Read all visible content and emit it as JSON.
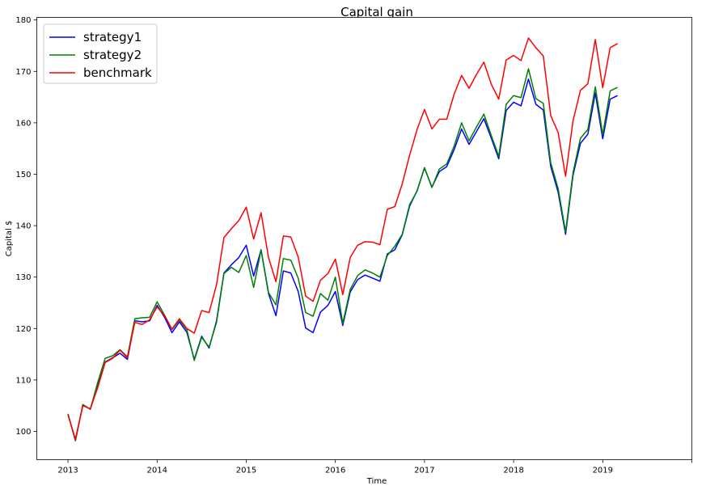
{
  "chart_data": {
    "type": "line",
    "title": "Capital gain",
    "xlabel": "Time",
    "ylabel": "Capital $",
    "xlim": [
      2012.65,
      2020.0
    ],
    "ylim": [
      94.5,
      180.5
    ],
    "xticks": [
      2013,
      2014,
      2015,
      2016,
      2017,
      2018,
      2019,
      2020
    ],
    "xtick_labels": [
      "2013",
      "2014",
      "2015",
      "2016",
      "2017",
      "2018",
      "2019",
      ""
    ],
    "yticks": [
      100,
      110,
      120,
      130,
      140,
      150,
      160,
      170,
      180
    ],
    "legend_position": "top-left",
    "grid": false,
    "x_start": 2013.0,
    "x_step": 0.08333,
    "series": [
      {
        "name": "strategy1",
        "color": "#0000ff",
        "values": [
          103.4,
          98.2,
          105.2,
          104.3,
          108.8,
          113.5,
          114.3,
          115.2,
          114.0,
          121.5,
          121.3,
          121.5,
          124.5,
          122.2,
          119.2,
          121.3,
          119.3,
          114.0,
          118.5,
          116.2,
          121.5,
          130.8,
          132.4,
          133.8,
          136.2,
          130.2,
          135.3,
          126.8,
          122.5,
          131.2,
          130.8,
          127.2,
          120.1,
          119.2,
          123.2,
          124.5,
          127.2,
          120.6,
          127.1,
          129.5,
          130.4,
          129.8,
          129.2,
          134.5,
          135.3,
          138.2,
          143.8,
          146.8,
          151.2,
          147.5,
          150.5,
          151.5,
          154.8,
          158.8,
          155.8,
          158.3,
          160.8,
          157.0,
          153.0,
          162.4,
          164.0,
          163.3,
          168.5,
          163.6,
          162.5,
          151.5,
          146.5,
          138.3,
          149.8,
          156.0,
          157.8,
          165.8,
          156.9,
          164.6,
          165.3
        ]
      },
      {
        "name": "strategy2",
        "color": "#008000",
        "values": [
          103.4,
          98.2,
          105.2,
          104.3,
          109.5,
          114.2,
          114.7,
          115.9,
          114.5,
          121.9,
          122.1,
          122.2,
          125.2,
          122.6,
          119.8,
          121.7,
          119.8,
          113.8,
          118.3,
          116.4,
          121.2,
          130.7,
          131.9,
          130.9,
          134.2,
          128.0,
          135.3,
          127.0,
          124.6,
          133.6,
          133.3,
          129.8,
          123.1,
          122.4,
          126.8,
          125.5,
          130.0,
          121.0,
          127.6,
          130.3,
          131.4,
          130.8,
          130.0,
          134.2,
          136.0,
          138.3,
          144.1,
          146.7,
          151.3,
          147.4,
          151.0,
          152.0,
          155.5,
          160.0,
          156.5,
          159.2,
          161.7,
          157.5,
          153.5,
          163.6,
          165.3,
          164.9,
          170.5,
          164.7,
          163.8,
          152.2,
          147.2,
          138.8,
          150.3,
          157.0,
          158.7,
          167.0,
          157.7,
          166.2,
          166.9
        ]
      },
      {
        "name": "benchmark",
        "color": "#ff0000",
        "values": [
          103.2,
          98.5,
          105.0,
          104.4,
          108.5,
          113.4,
          114.2,
          115.8,
          114.3,
          121.2,
          120.8,
          121.7,
          124.2,
          122.5,
          119.9,
          121.9,
          120.0,
          119.1,
          123.5,
          123.1,
          128.5,
          137.7,
          139.4,
          141.0,
          143.6,
          137.4,
          142.5,
          133.8,
          129.1,
          138.0,
          137.8,
          133.9,
          126.3,
          125.3,
          129.4,
          130.7,
          133.5,
          126.6,
          133.8,
          136.2,
          136.9,
          136.8,
          136.3,
          143.2,
          143.7,
          148.1,
          153.7,
          158.7,
          162.6,
          158.8,
          160.7,
          160.7,
          165.6,
          169.2,
          166.7,
          169.4,
          171.8,
          167.5,
          164.6,
          172.2,
          173.1,
          172.1,
          176.5,
          174.6,
          173.0,
          161.4,
          158.1,
          149.6,
          160.4,
          166.3,
          167.6,
          176.2,
          166.8,
          174.6,
          175.4
        ]
      }
    ]
  }
}
